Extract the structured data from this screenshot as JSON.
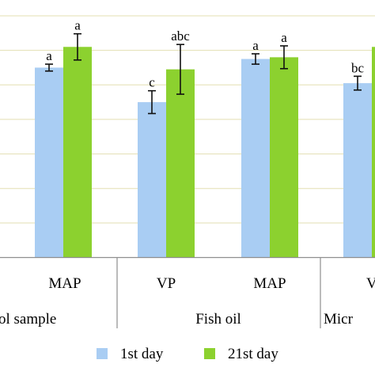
{
  "chart_data": {
    "type": "bar",
    "title": "",
    "xlabel": "",
    "ylabel": "",
    "ylim": [
      0,
      7
    ],
    "grid": true,
    "legend_position": "bottom",
    "colors": {
      "series1": "#a9cdf3",
      "series2": "#8cd12f",
      "grid": "#e3dfb2",
      "axis": "#8e8e8e",
      "text": "#000000"
    },
    "categories": [
      {
        "label": "MAP",
        "group": "Control sample"
      },
      {
        "label": "VP",
        "group": "Fish oil"
      },
      {
        "label": "MAP",
        "group": "Fish oil"
      },
      {
        "label": "VP",
        "group": "Microencapsulated"
      }
    ],
    "groups": [
      {
        "label": "ol sample"
      },
      {
        "label": "Fish oil"
      },
      {
        "label": "Micr"
      }
    ],
    "visible_tick_labels": [
      "MAP",
      "VP",
      "MAP",
      "V"
    ],
    "series": [
      {
        "name": "1st day",
        "values": [
          5.5,
          4.5,
          5.75,
          5.05
        ],
        "errors": [
          0.1,
          0.33,
          0.15,
          0.2
        ],
        "letters": [
          "a",
          "c",
          "a",
          "bc"
        ]
      },
      {
        "name": "21st day",
        "values": [
          6.1,
          5.45,
          5.8,
          6.1
        ],
        "errors": [
          0.38,
          0.72,
          0.33,
          null
        ],
        "letters": [
          "a",
          "abc",
          "a",
          ""
        ]
      }
    ]
  }
}
